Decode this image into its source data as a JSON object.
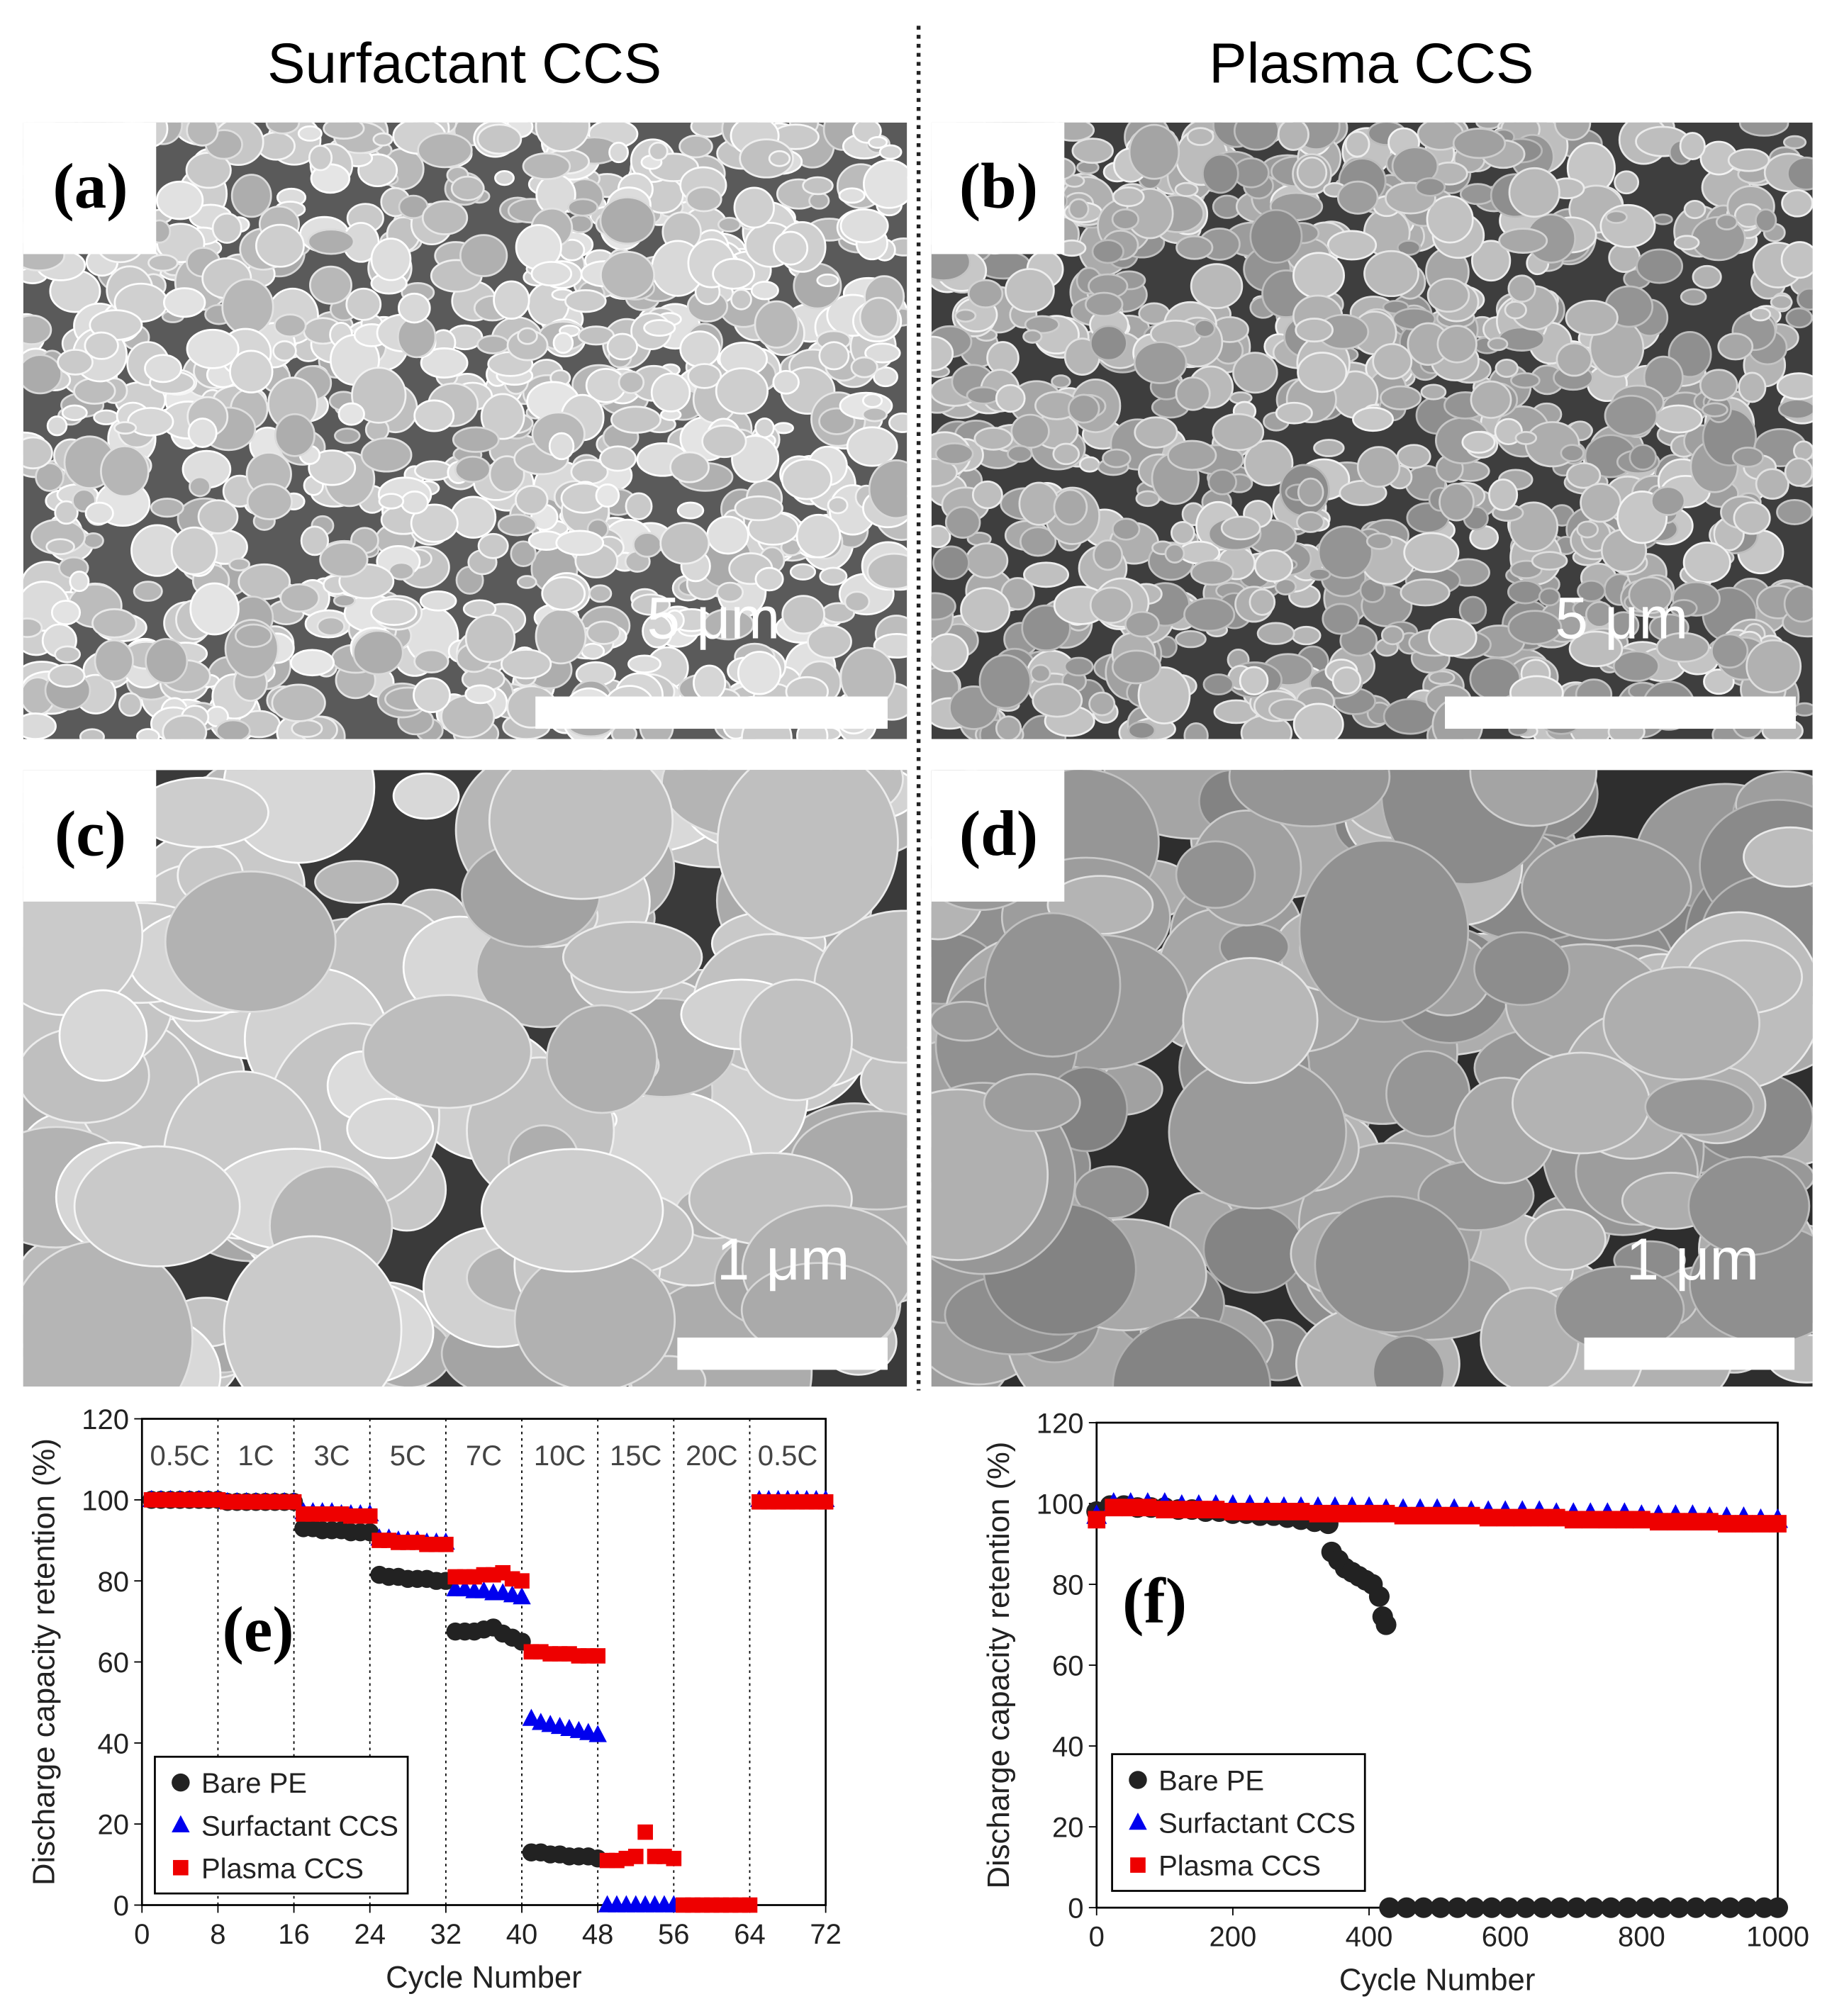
{
  "column_titles": [
    "Surfactant CCS",
    "Plasma CCS"
  ],
  "sem_panels": [
    {
      "label": "(a)",
      "scale_bar": "5 μm"
    },
    {
      "label": "(b)",
      "scale_bar": "5 μm"
    },
    {
      "label": "(c)",
      "scale_bar": "1 μm"
    },
    {
      "label": "(d)",
      "scale_bar": "1 μm"
    }
  ],
  "chart_data": [
    {
      "type": "scatter",
      "panel_label": "(e)",
      "x_label": "Cycle Number",
      "y_label": "Discharge capacity retention (%)",
      "xlim": [
        0,
        72
      ],
      "xticks": [
        0,
        8,
        16,
        24,
        32,
        40,
        48,
        56,
        64,
        72
      ],
      "ylim": [
        0,
        120
      ],
      "yticks": [
        0,
        20,
        40,
        60,
        80,
        100,
        120
      ],
      "rate_labels": [
        "0.5C",
        "1C",
        "3C",
        "5C",
        "7C",
        "10C",
        "15C",
        "20C",
        "0.5C"
      ],
      "legend": "lower left",
      "x": [
        1,
        2,
        3,
        4,
        5,
        6,
        7,
        8,
        9,
        10,
        11,
        12,
        13,
        14,
        15,
        16,
        17,
        18,
        19,
        20,
        21,
        22,
        23,
        24,
        25,
        26,
        27,
        28,
        29,
        30,
        31,
        32,
        33,
        34,
        35,
        36,
        37,
        38,
        39,
        40,
        41,
        42,
        43,
        44,
        45,
        46,
        47,
        48,
        49,
        50,
        51,
        52,
        53,
        54,
        55,
        56,
        57,
        58,
        59,
        60,
        61,
        62,
        63,
        64,
        65,
        66,
        67,
        68,
        69,
        70,
        71,
        72
      ],
      "series": [
        {
          "name": "Bare PE",
          "color": "#222222",
          "marker": "circle",
          "values": [
            100,
            100,
            100,
            100,
            100,
            100,
            100,
            100,
            99.5,
            99.5,
            99.5,
            99.5,
            99.5,
            99.5,
            99.5,
            99.5,
            93,
            93,
            92.5,
            92.5,
            92.5,
            92,
            92,
            92,
            81.5,
            81,
            81,
            80.5,
            80.5,
            80.5,
            80,
            80,
            67.5,
            67.5,
            67.5,
            68,
            68.5,
            67,
            66,
            65,
            13,
            13,
            12.5,
            12.5,
            12,
            12,
            12,
            11.5,
            null,
            null,
            null,
            null,
            null,
            null,
            null,
            null,
            null,
            null,
            null,
            null,
            null,
            null,
            null,
            null,
            null,
            null,
            null,
            null,
            null,
            null,
            null,
            null
          ]
        },
        {
          "name": "Surfactant CCS",
          "color": "#0000ee",
          "marker": "triangle",
          "values": [
            100,
            100,
            100,
            100,
            100,
            100,
            100,
            100,
            99.5,
            99.5,
            99.5,
            99.5,
            99.5,
            99.5,
            99.5,
            99.5,
            97,
            97,
            97,
            97,
            96.5,
            96.5,
            96.5,
            96.5,
            90.5,
            90.5,
            90,
            90,
            90,
            89.5,
            89.5,
            89.5,
            78,
            78,
            77.5,
            77.5,
            77,
            77,
            76.5,
            76,
            46,
            45,
            44.5,
            44,
            43.5,
            43,
            42.5,
            42,
            0,
            0,
            0,
            0,
            0,
            0,
            0,
            0,
            null,
            null,
            null,
            null,
            null,
            null,
            null,
            null,
            100,
            100,
            100,
            100,
            100,
            100,
            100,
            100
          ]
        },
        {
          "name": "Plasma CCS",
          "color": "#ee0000",
          "marker": "square",
          "values": [
            100,
            100,
            100,
            100,
            100,
            100,
            100,
            100,
            99.5,
            99.5,
            99.5,
            99.5,
            99.5,
            99.5,
            99.5,
            99.5,
            96.5,
            96.5,
            96.5,
            96.5,
            96.5,
            96,
            96,
            96,
            90,
            90,
            89.5,
            89.5,
            89.5,
            89,
            89,
            89,
            81,
            81,
            81,
            81.5,
            81.5,
            82,
            80.5,
            80,
            62.5,
            62.5,
            62,
            62,
            62,
            61.5,
            61.5,
            61.5,
            11,
            11,
            11.5,
            12,
            18,
            12,
            12,
            11.5,
            0,
            0,
            0,
            0,
            0,
            0,
            0,
            0,
            99.5,
            99.5,
            99.5,
            99.5,
            99.5,
            99.5,
            99.5,
            99.5
          ]
        }
      ]
    },
    {
      "type": "scatter",
      "panel_label": "(f)",
      "x_label": "Cycle Number",
      "y_label": "Discharge capacity retention (%)",
      "xlim": [
        0,
        1000
      ],
      "xticks": [
        0,
        200,
        400,
        600,
        800,
        1000
      ],
      "ylim": [
        0,
        120
      ],
      "yticks": [
        0,
        20,
        40,
        60,
        80,
        100,
        120
      ],
      "legend": "lower left",
      "series": [
        {
          "name": "Bare PE",
          "color": "#222222",
          "marker": "circle",
          "x": [
            0,
            20,
            40,
            60,
            80,
            100,
            120,
            140,
            160,
            180,
            200,
            220,
            240,
            260,
            280,
            300,
            320,
            340,
            345,
            355,
            365,
            375,
            385,
            395,
            405,
            415,
            420,
            425,
            430,
            455,
            480,
            505,
            530,
            555,
            580,
            605,
            630,
            655,
            680,
            705,
            730,
            755,
            780,
            805,
            830,
            855,
            880,
            905,
            930,
            955,
            980,
            1000
          ],
          "values": [
            98,
            99.5,
            99.5,
            99,
            99,
            99,
            98.5,
            98.5,
            98,
            98,
            97.5,
            97.5,
            97,
            97,
            96.5,
            96,
            95.5,
            95,
            88,
            86,
            84,
            83,
            82,
            81,
            80,
            77,
            72,
            70,
            0,
            0,
            0,
            0,
            0,
            0,
            0,
            0,
            0,
            0,
            0,
            0,
            0,
            0,
            0,
            0,
            0,
            0,
            0,
            0,
            0,
            0,
            0,
            0
          ]
        },
        {
          "name": "Surfactant CCS",
          "color": "#0000ee",
          "marker": "triangle",
          "x": [
            0,
            25,
            50,
            75,
            100,
            125,
            150,
            175,
            200,
            225,
            250,
            275,
            300,
            325,
            350,
            375,
            400,
            425,
            450,
            475,
            500,
            525,
            550,
            575,
            600,
            625,
            650,
            675,
            700,
            725,
            750,
            775,
            800,
            825,
            850,
            875,
            900,
            925,
            950,
            975,
            1000
          ],
          "values": [
            97,
            100,
            100,
            100,
            100,
            99.5,
            99.5,
            99.5,
            99.5,
            99.5,
            99,
            99,
            99,
            99,
            99,
            99,
            99,
            98.5,
            98.5,
            98.5,
            98.5,
            98.5,
            98,
            98,
            98,
            98,
            98,
            97.5,
            97.5,
            97.5,
            97.5,
            97.5,
            97,
            97,
            97,
            97,
            96.5,
            96.5,
            96.5,
            96,
            96
          ]
        },
        {
          "name": "Plasma CCS",
          "color": "#ee0000",
          "marker": "square",
          "x": [
            0,
            25,
            50,
            75,
            100,
            125,
            150,
            175,
            200,
            225,
            250,
            275,
            300,
            325,
            350,
            375,
            400,
            425,
            450,
            475,
            500,
            525,
            550,
            575,
            600,
            625,
            650,
            675,
            700,
            725,
            750,
            775,
            800,
            825,
            850,
            875,
            900,
            925,
            950,
            975,
            1000
          ],
          "values": [
            96,
            99,
            99,
            99,
            98.5,
            98.5,
            98.5,
            98.5,
            98,
            98,
            98,
            98,
            98,
            97.5,
            97.5,
            97.5,
            97.5,
            97.5,
            97,
            97,
            97,
            97,
            97,
            96.5,
            96.5,
            96.5,
            96.5,
            96.5,
            96,
            96,
            96,
            96,
            96,
            95.5,
            95.5,
            95.5,
            95.5,
            95,
            95,
            95,
            95
          ]
        }
      ]
    }
  ]
}
